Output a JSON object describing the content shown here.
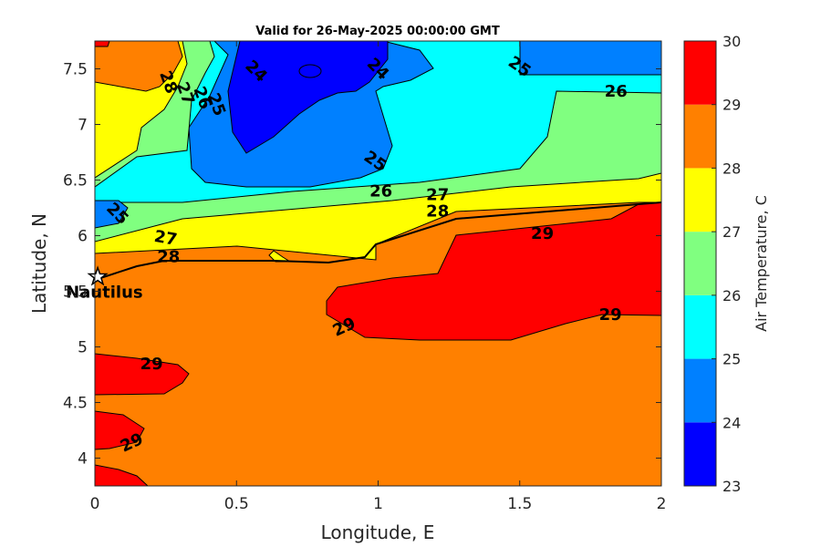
{
  "chart_data": {
    "type": "filled-contour",
    "title": "Valid for 26-May-2025 00:00:00 GMT",
    "xlabel": "Longitude, E",
    "ylabel": "Latitude, N",
    "xlim": [
      0,
      2
    ],
    "ylim": [
      3.75,
      7.75
    ],
    "xticks": [
      0,
      0.5,
      1,
      1.5,
      2
    ],
    "xtick_labels": [
      "0",
      "0.5",
      "1",
      "1.5",
      "2"
    ],
    "yticks": [
      4,
      4.5,
      5,
      5.5,
      6,
      6.5,
      7,
      7.5
    ],
    "ytick_labels": [
      "4",
      "4.5",
      "5",
      "5.5",
      "6",
      "6.5",
      "7",
      "7.5"
    ],
    "colorbar": {
      "label": "Air Temperature, C",
      "levels": [
        23,
        24,
        25,
        26,
        27,
        28,
        29,
        30
      ],
      "tick_labels": [
        "23",
        "24",
        "25",
        "26",
        "27",
        "28",
        "29",
        "30"
      ],
      "colors": [
        "#0000ff",
        "#0080ff",
        "#00ffff",
        "#80ff80",
        "#ffff00",
        "#ff8000",
        "#ff0000",
        "#800000"
      ]
    },
    "contour_labels": [
      {
        "text": "24",
        "lon": 0.57,
        "lat": 7.48,
        "angle": -45
      },
      {
        "text": "24",
        "lon": 1.0,
        "lat": 7.5,
        "angle": -45
      },
      {
        "text": "25",
        "lon": 1.5,
        "lat": 7.52,
        "angle": -35
      },
      {
        "text": "26",
        "lon": 1.84,
        "lat": 7.3,
        "angle": 0
      },
      {
        "text": "28",
        "lon": 0.26,
        "lat": 7.38,
        "angle": -70
      },
      {
        "text": "27",
        "lon": 0.32,
        "lat": 7.28,
        "angle": -70
      },
      {
        "text": "26",
        "lon": 0.38,
        "lat": 7.24,
        "angle": -70
      },
      {
        "text": "25",
        "lon": 0.43,
        "lat": 7.18,
        "angle": -70
      },
      {
        "text": "25",
        "lon": 0.99,
        "lat": 6.67,
        "angle": -35
      },
      {
        "text": "26",
        "lon": 1.01,
        "lat": 6.4,
        "angle": 0
      },
      {
        "text": "27",
        "lon": 1.21,
        "lat": 6.37,
        "angle": 0
      },
      {
        "text": "28",
        "lon": 1.21,
        "lat": 6.22,
        "angle": 0
      },
      {
        "text": "25",
        "lon": 0.08,
        "lat": 6.2,
        "angle": -45
      },
      {
        "text": "27",
        "lon": 0.25,
        "lat": 5.98,
        "angle": -10
      },
      {
        "text": "28",
        "lon": 0.26,
        "lat": 5.81,
        "angle": 0
      },
      {
        "text": "29",
        "lon": 1.58,
        "lat": 6.02,
        "angle": 0
      },
      {
        "text": "29",
        "lon": 1.82,
        "lat": 5.29,
        "angle": 0
      },
      {
        "text": "29",
        "lon": 0.88,
        "lat": 5.18,
        "angle": 25
      },
      {
        "text": "29",
        "lon": 0.2,
        "lat": 4.85,
        "angle": 0
      },
      {
        "text": "29",
        "lon": 0.13,
        "lat": 4.14,
        "angle": 25
      }
    ],
    "station": {
      "name": "Nautilus",
      "lon": 0.01,
      "lat": 5.63
    }
  }
}
